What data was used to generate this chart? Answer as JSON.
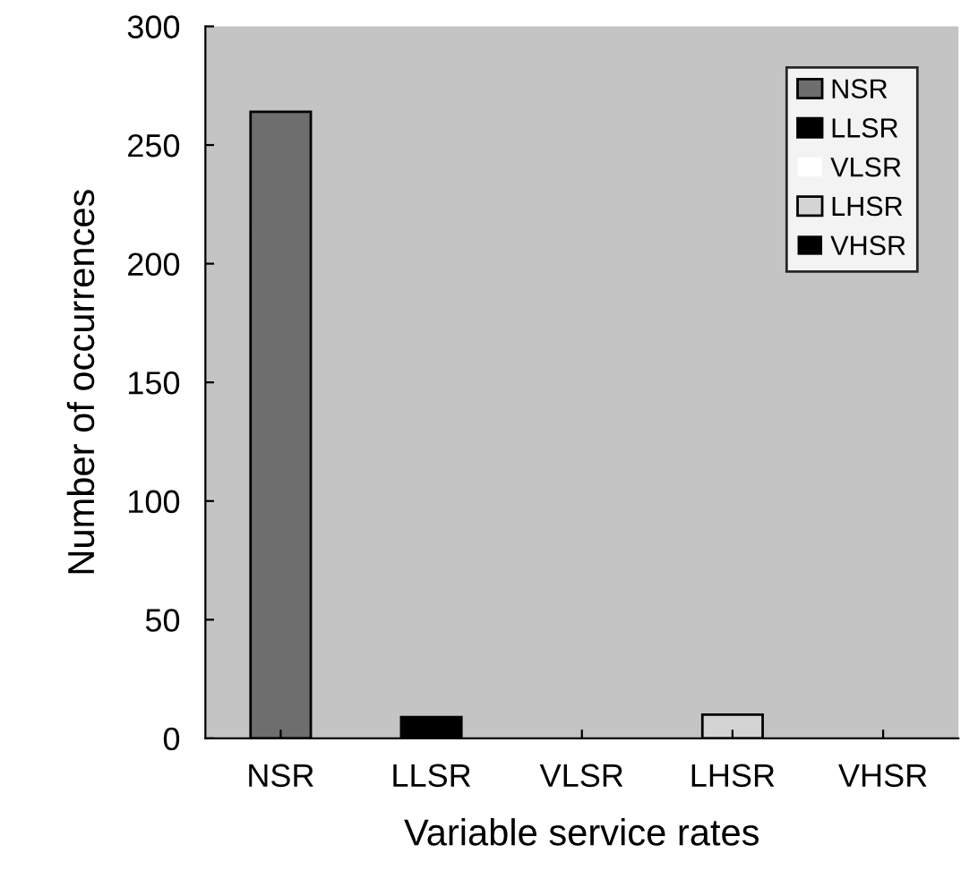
{
  "chart_data": {
    "type": "bar",
    "xlabel": "Variable service rates",
    "ylabel": "Number of occurrences",
    "categories": [
      "NSR",
      "LLSR",
      "VLSR",
      "LHSR",
      "VHSR"
    ],
    "series": [
      {
        "name": "NSR",
        "color": "#6e6e6e",
        "values": [
          264,
          null,
          null,
          null,
          null
        ]
      },
      {
        "name": "LLSR",
        "color": "#000000",
        "values": [
          null,
          9,
          null,
          null,
          null
        ]
      },
      {
        "name": "VLSR",
        "color": "#ffffff",
        "values": [
          null,
          null,
          0,
          null,
          null
        ]
      },
      {
        "name": "LHSR",
        "color": "#d4d4d4",
        "values": [
          null,
          null,
          null,
          10,
          null
        ]
      },
      {
        "name": "VHSR",
        "color": "#000000",
        "values": [
          null,
          null,
          null,
          null,
          0
        ]
      }
    ],
    "ylim": [
      0,
      300
    ],
    "yticks": [
      0,
      50,
      100,
      150,
      200,
      250,
      300
    ],
    "grid": false,
    "legend": "top right"
  }
}
